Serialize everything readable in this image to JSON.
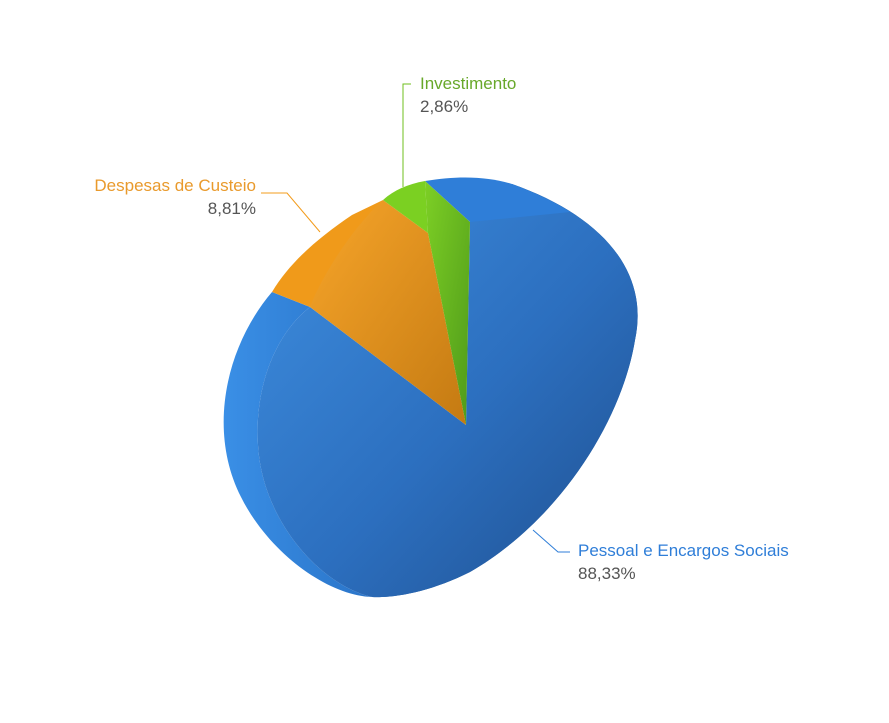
{
  "chart_data": {
    "type": "pie",
    "style": "3d",
    "title": "",
    "slices": [
      {
        "label": "Pessoal e Encargos Sociais",
        "value": 88.33,
        "display": "88,33%",
        "color": "#2f7ed8"
      },
      {
        "label": "Despesas de Custeio",
        "value": 8.81,
        "display": "8,81%",
        "color": "#f39c1c"
      },
      {
        "label": "Investimento",
        "value": 2.86,
        "display": "2,86%",
        "color": "#6fbf1e"
      }
    ],
    "label_colors": {
      "Pessoal e Encargos Sociais": "#2f7ed8",
      "Despesas de Custeio": "#e99a2c",
      "Investimento": "#68a82a"
    }
  }
}
